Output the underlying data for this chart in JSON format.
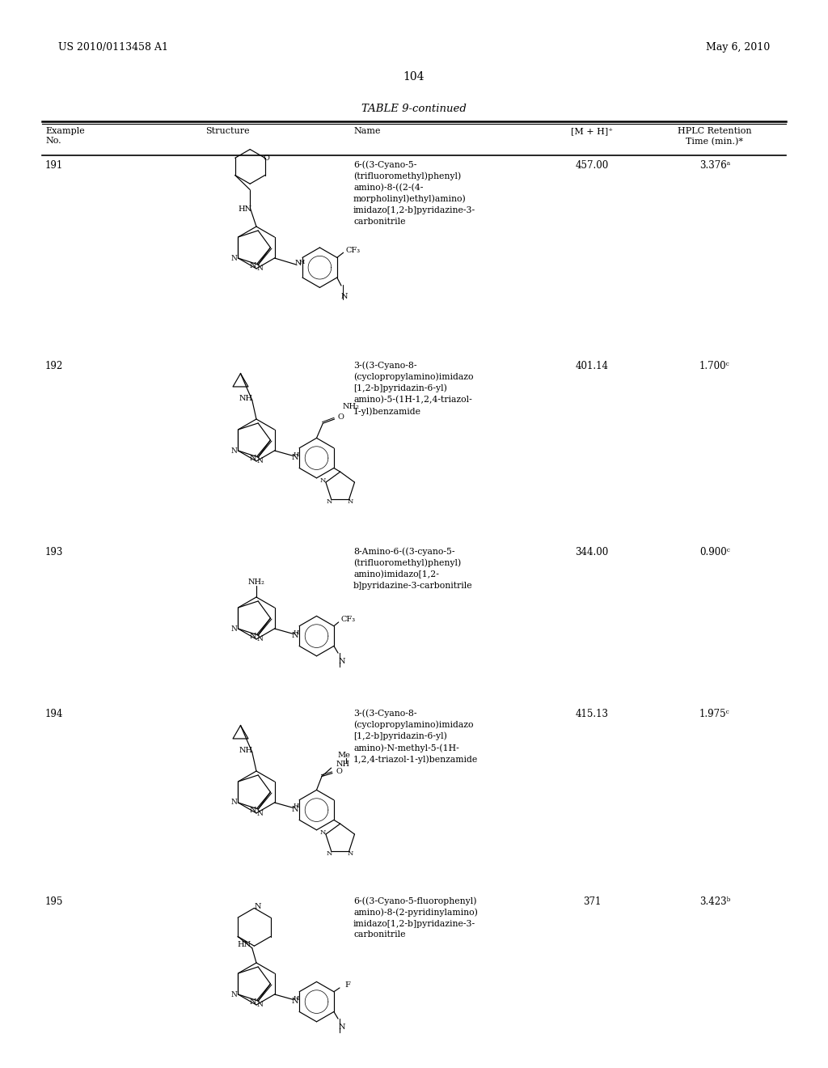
{
  "page_header_left": "US 2010/0113458 A1",
  "page_header_right": "May 6, 2010",
  "page_number": "104",
  "table_title": "TABLE 9-continued",
  "background_color": "#ffffff",
  "text_color": "#000000",
  "rows": [
    {
      "example": "191",
      "name": "6-((3-Cyano-5-\n(trifluoromethyl)phenyl)\namino)-8-((2-(4-\nmorpholinyl)ethyl)amino)\nimidazo[1,2-b]pyridazine-3-\ncarbonitrile",
      "mh": "457.00",
      "hplc": "3.376ᵃ"
    },
    {
      "example": "192",
      "name": "3-((3-Cyano-8-\n(cyclopropylamino)imidazo\n[1,2-b]pyridazin-6-yl)\namino)-5-(1H-1,2,4-triazol-\n1-yl)benzamide",
      "mh": "401.14",
      "hplc": "1.700ᶜ"
    },
    {
      "example": "193",
      "name": "8-Amino-6-((3-cyano-5-\n(trifluoromethyl)phenyl)\namino)imidazo[1,2-\nb]pyridazine-3-carbonitrile",
      "mh": "344.00",
      "hplc": "0.900ᶜ"
    },
    {
      "example": "194",
      "name": "3-((3-Cyano-8-\n(cyclopropylamino)imidazo\n[1,2-b]pyridazin-6-yl)\namino)-N-methyl-5-(1H-\n1,2,4-triazol-1-yl)benzamide",
      "mh": "415.13",
      "hplc": "1.975ᶜ"
    },
    {
      "example": "195",
      "name": "6-((3-Cyano-5-fluorophenyl)\namino)-8-(2-pyridinylamino)\nimidazo[1,2-b]pyridazine-3-\ncarbonitrile",
      "mh": "371",
      "hplc": "3.423ᵇ"
    }
  ]
}
